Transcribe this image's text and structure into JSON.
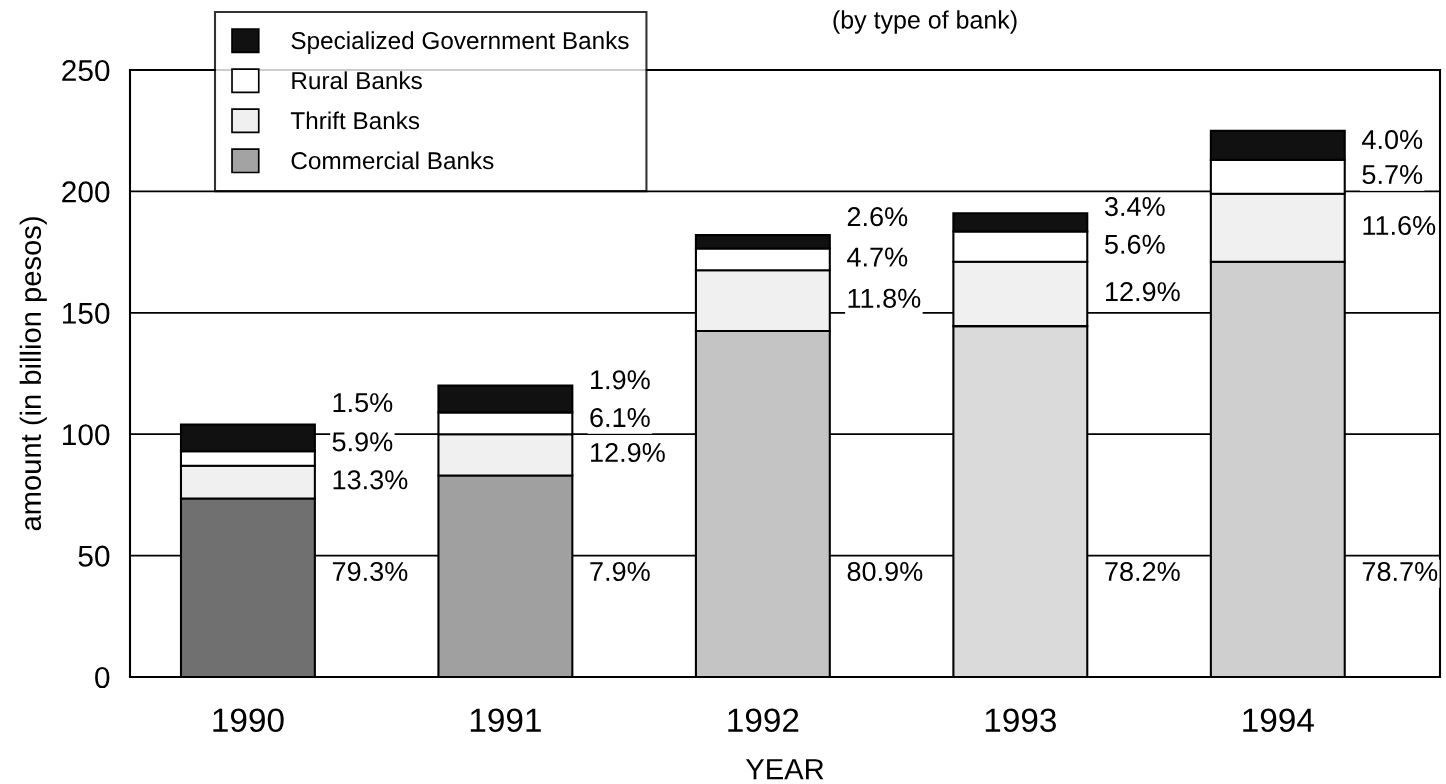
{
  "chart_data": {
    "type": "bar",
    "title": "(by type of bank)",
    "xlabel": "YEAR",
    "ylabel": "amount (in billion pesos)",
    "categories": [
      "1990",
      "1991",
      "1992",
      "1993",
      "1994"
    ],
    "stacked": true,
    "series": [
      {
        "name": "Commercial Banks",
        "color": "#a3a3a3",
        "colors": [
          "#707070",
          "#a0a0a0",
          "#c4c4c4",
          "#dadada",
          "#cfcfcf"
        ],
        "values": [
          73.5,
          83,
          142.5,
          144.5,
          171
        ]
      },
      {
        "name": "Thrift Banks",
        "color": "#f0f0f0",
        "values": [
          13.5,
          17,
          25,
          26.5,
          28
        ]
      },
      {
        "name": "Rural Banks",
        "color": "#ffffff",
        "values": [
          6,
          9,
          9,
          12.5,
          14
        ]
      },
      {
        "name": "Specialized Government Banks",
        "color": "#111111",
        "values": [
          11,
          11,
          5.5,
          7.5,
          12
        ]
      }
    ],
    "annotations": [
      "1.5%",
      "5.9%",
      "13.3%",
      "79.3%",
      "1.9%",
      "6.1%",
      "12.9%",
      "7.9%",
      "2.6%",
      "4.7%",
      "11.8%",
      "80.9%",
      "3.4%",
      "5.6%",
      "12.9%",
      "78.2%",
      "4.0%",
      "5.7%",
      "11.6%",
      "78.7%"
    ],
    "ylim": [
      0,
      250
    ],
    "yticks": [
      0,
      50,
      100,
      150,
      200,
      250
    ],
    "grid": "y",
    "legend": "top left"
  }
}
